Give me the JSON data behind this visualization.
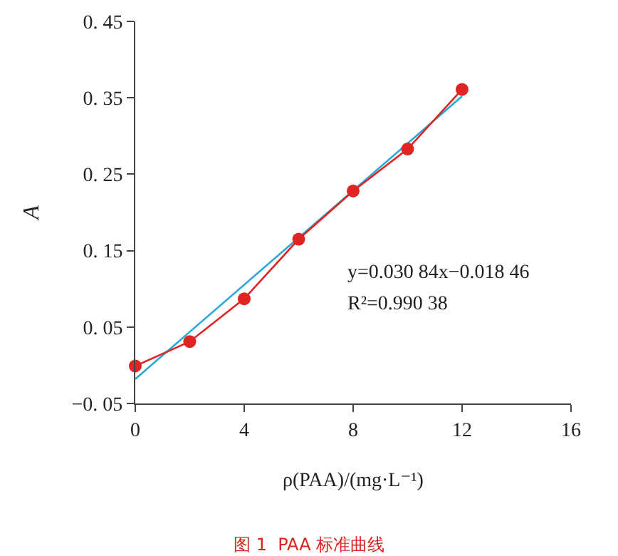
{
  "chart_data": {
    "type": "line",
    "xlabel": "ρ(PAA)/(mg·L⁻¹)",
    "ylabel": "A",
    "x": [
      0,
      2,
      4,
      6,
      8,
      10,
      12
    ],
    "series": [
      {
        "color": "#29a8d8",
        "x": [
          0,
          12
        ],
        "values": [
          -0.018,
          0.352
        ],
        "marker": "none"
      },
      {
        "color": "#e02424",
        "values": [
          -0.001,
          0.031,
          0.087,
          0.165,
          0.228,
          0.283,
          0.361
        ],
        "marker": "circle"
      }
    ],
    "xlim": [
      0,
      16
    ],
    "xticks": [
      0,
      4,
      8,
      12,
      16
    ],
    "ylim": [
      -0.05,
      0.45
    ],
    "yticks": [
      -0.05,
      0.05,
      0.15,
      0.25,
      0.35,
      0.45
    ],
    "grid": false,
    "legend": false,
    "annotations": [
      "y=0.030 84x−0.018 46",
      "R²=0.990 38",
      "图 1  PAA 标准曲线"
    ]
  }
}
